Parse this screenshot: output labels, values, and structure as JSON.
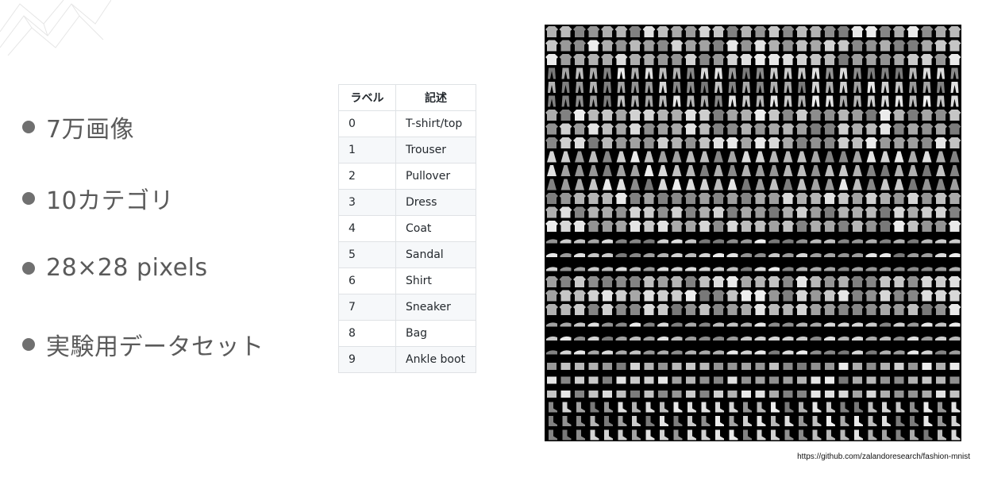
{
  "bullets": [
    {
      "text": "7万画像"
    },
    {
      "text": "10カテゴリ"
    },
    {
      "text": "28×28 pixels"
    },
    {
      "text": "実験用データセット"
    }
  ],
  "table": {
    "headers": [
      "ラベル",
      "記述"
    ],
    "rows": [
      [
        "0",
        "T-shirt/top"
      ],
      [
        "1",
        "Trouser"
      ],
      [
        "2",
        "Pullover"
      ],
      [
        "3",
        "Dress"
      ],
      [
        "4",
        "Coat"
      ],
      [
        "5",
        "Sandal"
      ],
      [
        "6",
        "Shirt"
      ],
      [
        "7",
        "Sneaker"
      ],
      [
        "8",
        "Bag"
      ],
      [
        "9",
        "Ankle boot"
      ]
    ]
  },
  "image": {
    "icon": "fashion-mnist-sprite-grid"
  },
  "credit": "https://github.com/zalandoresearch/fashion-mnist",
  "colors": {
    "bullet_text": "#5a5a5a",
    "bullet_dot": "#707070",
    "table_border": "#dfe2e5",
    "table_stripe": "#f6f8fa"
  }
}
